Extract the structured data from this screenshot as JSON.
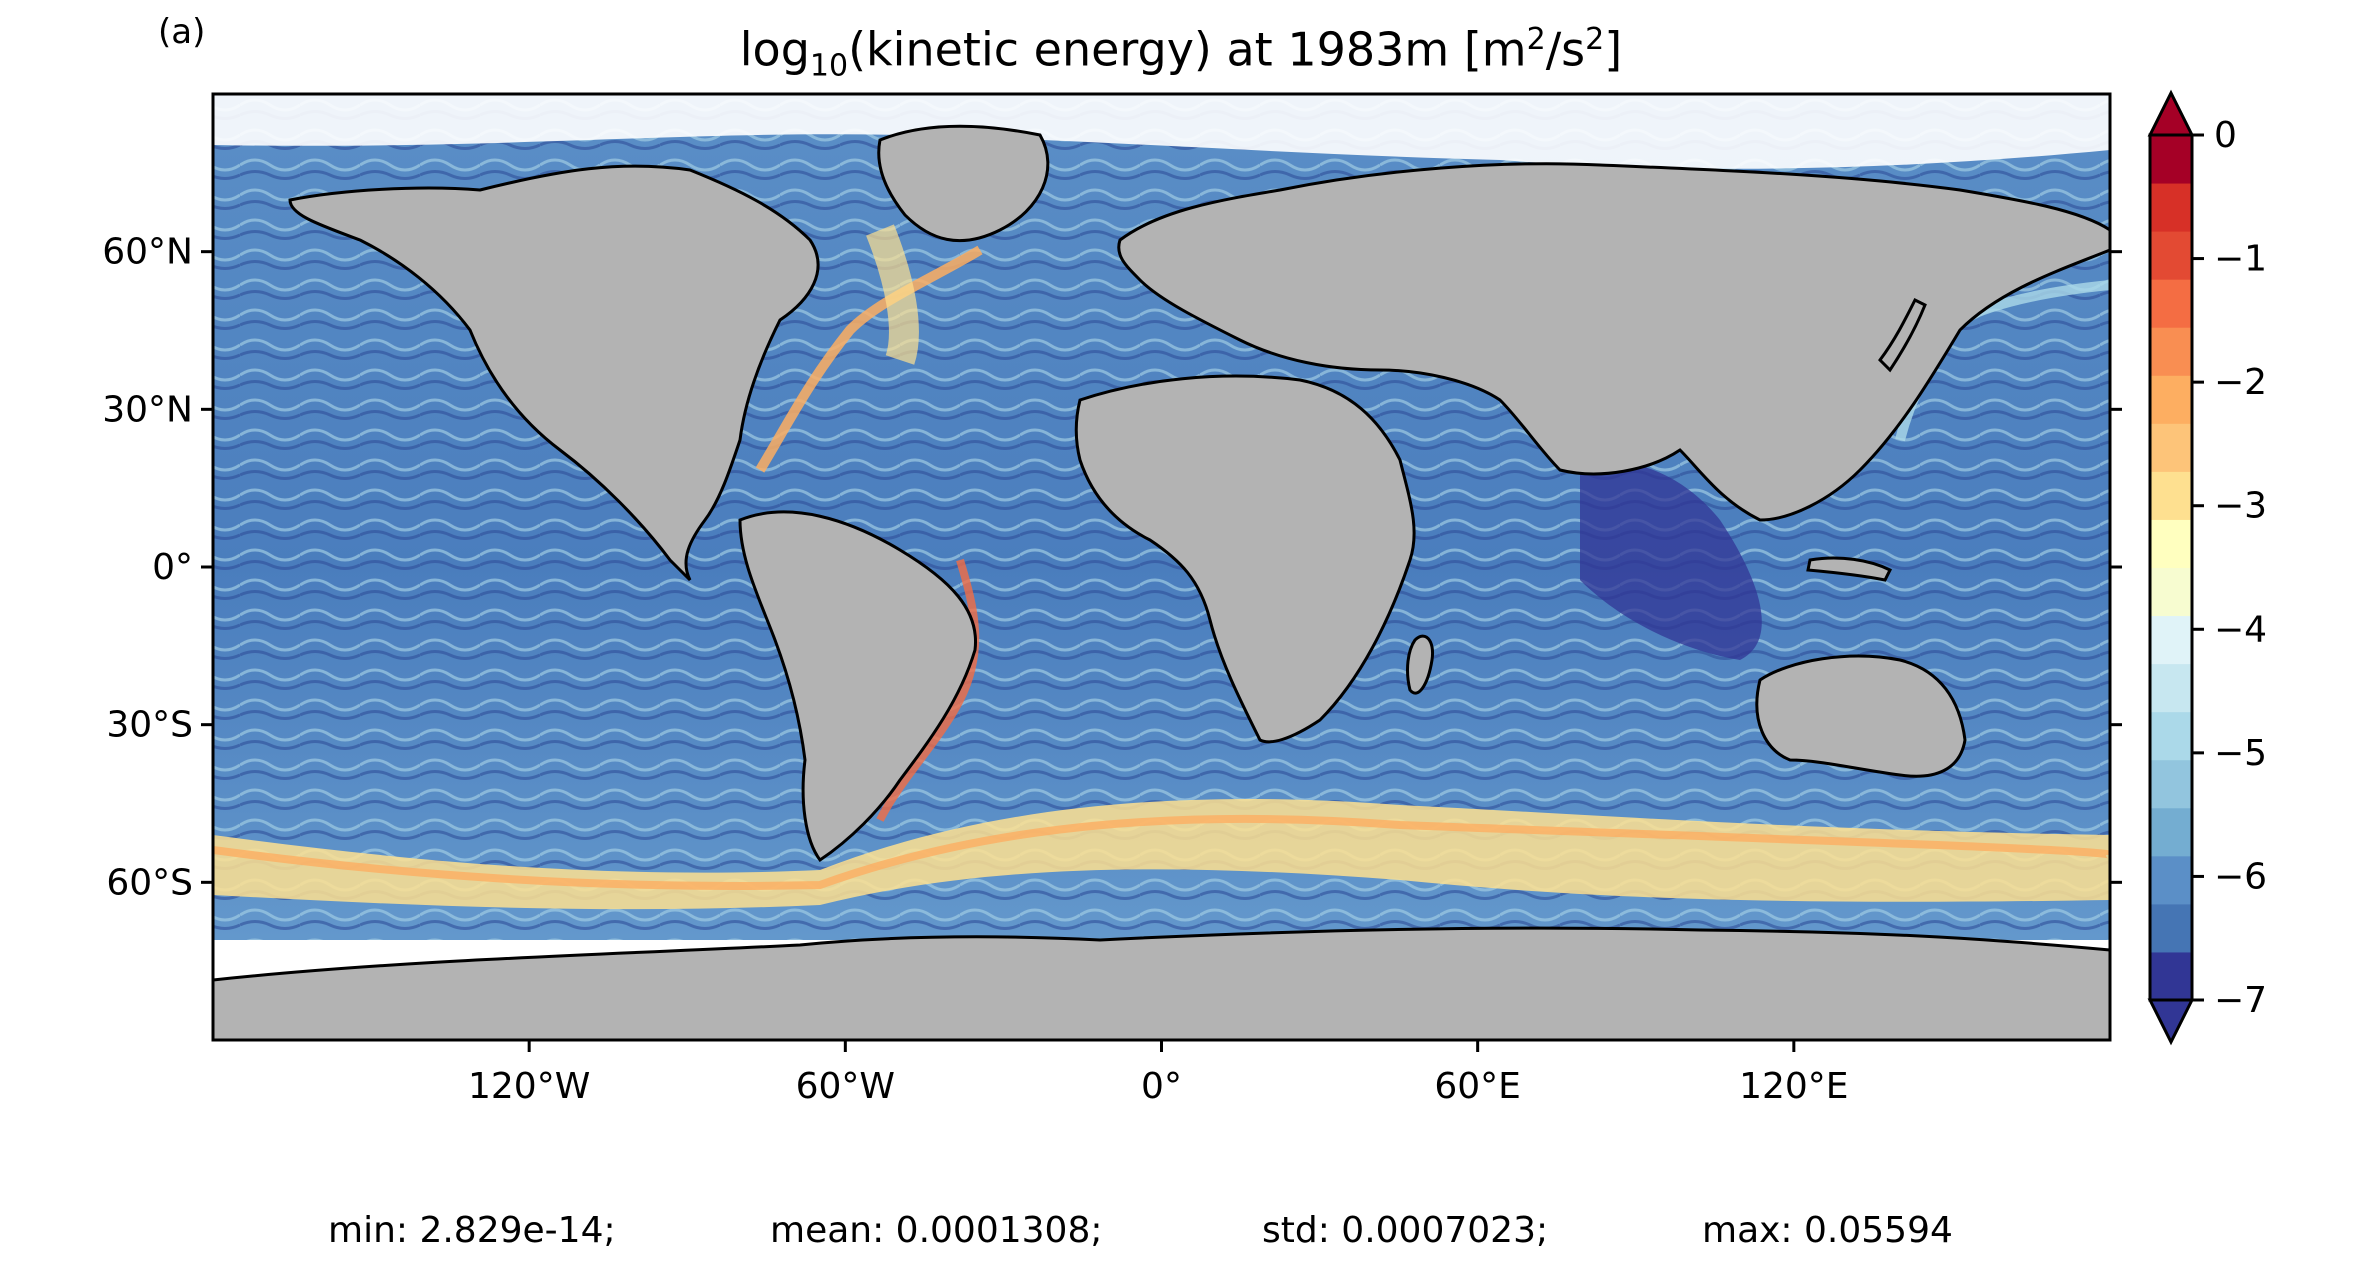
{
  "panel_label": "(a)",
  "title": {
    "prefix": "log",
    "sub": "10",
    "main": "(kinetic energy) at 1983m [m",
    "sup1": "2",
    "slash": "/s",
    "sup2": "2",
    "end": "]"
  },
  "map": {
    "projection": "equirectangular",
    "lon_range": [
      -180,
      180
    ],
    "lat_range": [
      -90,
      90
    ],
    "land_color": "#b3b3b3",
    "coast_color": "#000000",
    "x_tick_labels": [
      "120°W",
      "60°W",
      "0°",
      "60°E",
      "120°E"
    ],
    "x_tick_values": [
      -120,
      -60,
      0,
      60,
      120
    ],
    "y_tick_labels": [
      "60°N",
      "30°N",
      "0°",
      "30°S",
      "60°S"
    ],
    "y_tick_values": [
      60,
      30,
      0,
      -30,
      -60
    ]
  },
  "colorbar": {
    "ticks": [
      "0",
      "−1",
      "−2",
      "−3",
      "−4",
      "−5",
      "−6",
      "−7"
    ],
    "tick_values": [
      0,
      -1,
      -2,
      -3,
      -4,
      -5,
      -6,
      -7
    ],
    "range": [
      -7,
      0
    ],
    "extend": "both",
    "colors": [
      "#313695",
      "#4575b4",
      "#5b8fc7",
      "#74add1",
      "#92c5de",
      "#abd9e9",
      "#c7e7f0",
      "#e0f3f8",
      "#f7fcd0",
      "#ffffbf",
      "#fee090",
      "#fdc479",
      "#fdae61",
      "#f98e52",
      "#f46d43",
      "#e34a33",
      "#d73027",
      "#a50026"
    ]
  },
  "stats": {
    "min": "min: 2.829e-14;",
    "mean": "mean: 0.0001308;",
    "std": "std: 0.0007023;",
    "max": "max: 0.05594"
  }
}
